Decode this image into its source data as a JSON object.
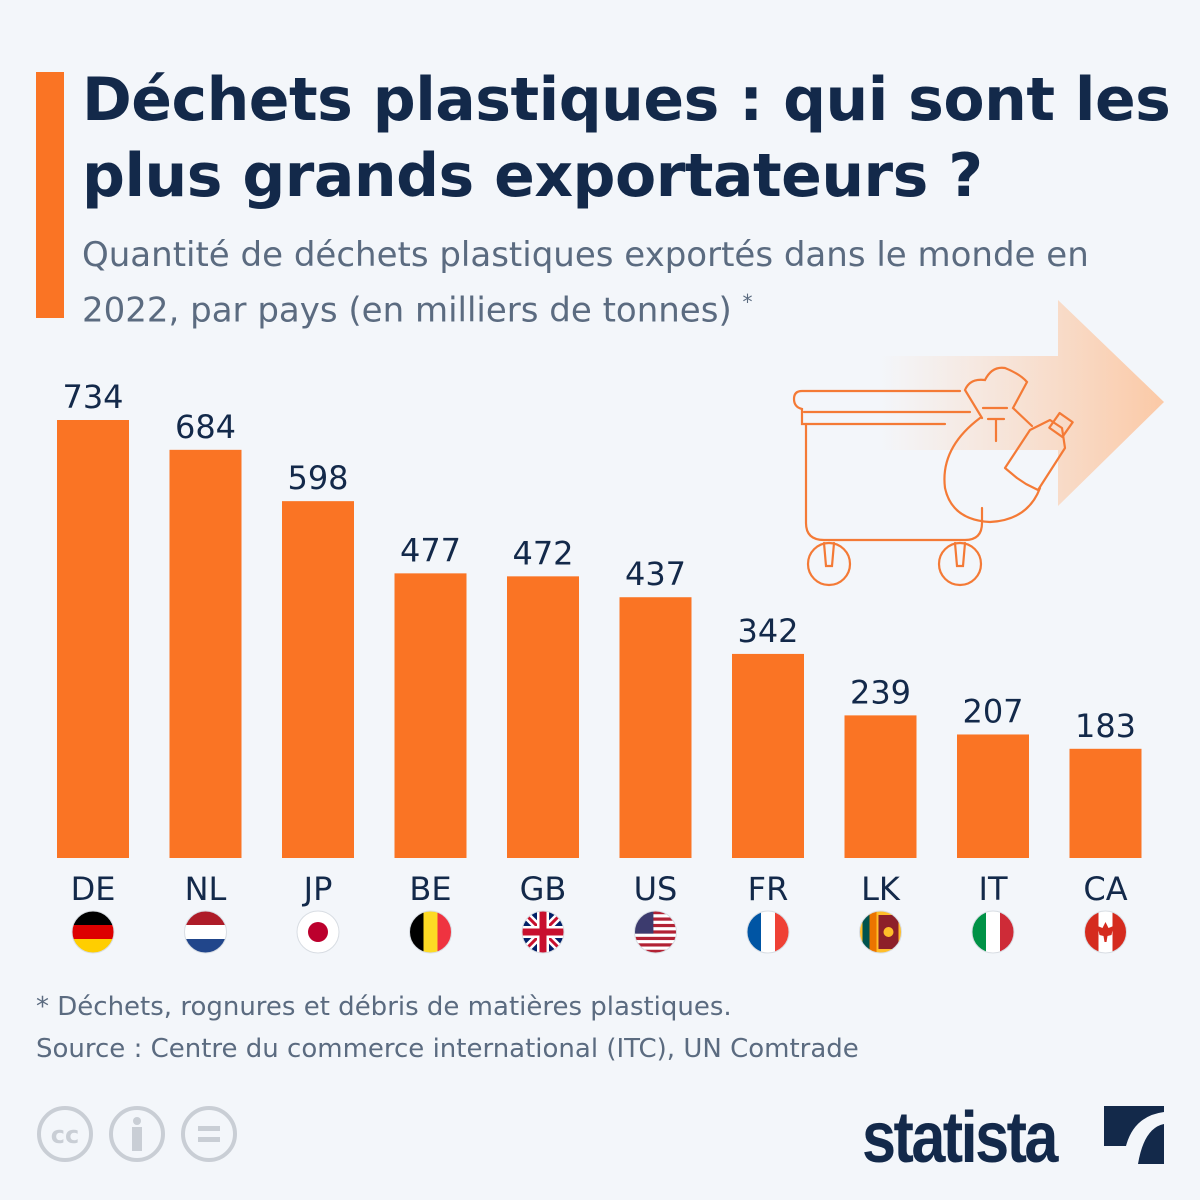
{
  "header": {
    "title": "Déchets plastiques : qui sont les plus grands exportateurs ?",
    "subtitle": "Quantité de déchets plastiques exportés dans le monde en 2022, par pays (en milliers de tonnes)",
    "subtitle_marker": "*"
  },
  "chart_data": {
    "type": "bar",
    "categories": [
      "DE",
      "NL",
      "JP",
      "BE",
      "GB",
      "US",
      "FR",
      "LK",
      "IT",
      "CA"
    ],
    "values": [
      734,
      684,
      598,
      477,
      472,
      437,
      342,
      239,
      207,
      183
    ],
    "flags": [
      "germany-flag",
      "netherlands-flag",
      "japan-flag",
      "belgium-flag",
      "uk-flag",
      "usa-flag",
      "france-flag",
      "sri-lanka-flag",
      "italy-flag",
      "canada-flag"
    ],
    "bar_color": "#fa7424",
    "grid": false,
    "ylim": [
      0,
      734
    ]
  },
  "footer": {
    "note": "* Déchets, rognures et débris de matières plastiques.",
    "source": "Source : Centre du commerce international (ITC), UN Comtrade",
    "license_icons": [
      "cc-icon",
      "attribution-icon",
      "no-derivatives-icon"
    ],
    "brand": "statista"
  }
}
